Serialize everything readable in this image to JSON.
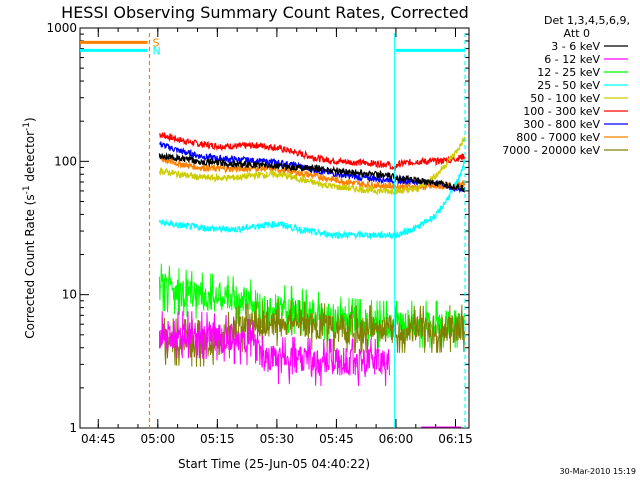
{
  "chart_data": {
    "type": "line",
    "title": "HESSI Observing Summary Count Rates, Corrected",
    "xlabel": "Start Time (25-Jun-05 04:40:22)",
    "ylabel_main": "Corrected Count Rate (s",
    "ylabel_sup1": "-1",
    "ylabel_mid": " detector",
    "ylabel_sup2": "-1",
    "ylabel_end": ")",
    "x_unit": "minutes since 04:40:22 UT",
    "xlim": [
      0,
      98
    ],
    "ylim": [
      1,
      1000
    ],
    "yscale": "log",
    "xticks": [
      {
        "t": 4.6,
        "label": "04:45"
      },
      {
        "t": 19.6,
        "label": "05:00"
      },
      {
        "t": 34.6,
        "label": "05:15"
      },
      {
        "t": 49.6,
        "label": "05:30"
      },
      {
        "t": 64.6,
        "label": "05:45"
      },
      {
        "t": 79.6,
        "label": "06:00"
      },
      {
        "t": 94.6,
        "label": "06:15"
      }
    ],
    "yticks": [
      {
        "v": 1,
        "label": "1"
      },
      {
        "v": 10,
        "label": "10"
      },
      {
        "v": 100,
        "label": "100"
      },
      {
        "v": 1000,
        "label": "1000"
      }
    ],
    "legend_header": [
      "Det 1,3,4,5,6,9,",
      "Att 0"
    ],
    "legend_placement": "right",
    "series": [
      {
        "name": "3 - 6 keV",
        "color": "#000000",
        "x": [
          20,
          30,
          40,
          50,
          60,
          65,
          70,
          75,
          77,
          85,
          90,
          93,
          97
        ],
        "y": [
          110,
          100,
          95,
          92,
          88,
          85,
          82,
          80,
          78,
          72,
          68,
          66,
          62
        ]
      },
      {
        "name": "6 - 12 keV",
        "color": "#ff00ff",
        "x": [
          20,
          25,
          30,
          35,
          40,
          43,
          46,
          50,
          55,
          60,
          65,
          70,
          75,
          78
        ],
        "y": [
          5.0,
          5.0,
          5.0,
          4.8,
          4.5,
          4.4,
          3.3,
          3.2,
          3.2,
          3.1,
          3.1,
          3.1,
          3.1,
          3.1
        ]
      },
      {
        "name": "12 - 25 keV",
        "color": "#00ff00",
        "x": [
          20,
          25,
          30,
          35,
          40,
          45,
          50,
          55,
          60,
          65,
          70,
          75,
          80,
          85,
          90,
          95,
          97
        ],
        "y": [
          11.5,
          10.5,
          9.8,
          9.5,
          9.0,
          8.5,
          8.0,
          7.5,
          7.0,
          6.5,
          6.2,
          6.0,
          6.0,
          6.0,
          6.0,
          6.0,
          6.0
        ]
      },
      {
        "name": "25 - 50 keV",
        "color": "#00ffff",
        "x": [
          20,
          25,
          30,
          35,
          40,
          45,
          50,
          55,
          60,
          65,
          70,
          75,
          80,
          85,
          90,
          93,
          95,
          97
        ],
        "y": [
          35,
          33,
          32,
          31,
          31,
          33,
          34,
          31,
          29,
          28,
          28,
          28,
          28,
          32,
          40,
          55,
          70,
          100
        ]
      },
      {
        "name": "50 - 100 keV",
        "color": "#cccc00",
        "x": [
          20,
          25,
          30,
          35,
          40,
          45,
          50,
          55,
          60,
          65,
          70,
          75,
          80,
          85,
          90,
          95,
          97
        ],
        "y": [
          85,
          80,
          76,
          75,
          76,
          79,
          80,
          74,
          68,
          64,
          62,
          60,
          60,
          62,
          80,
          120,
          150
        ]
      },
      {
        "name": "100 - 300 keV",
        "color": "#ff0000",
        "x": [
          20,
          25,
          30,
          35,
          40,
          45,
          50,
          55,
          60,
          65,
          70,
          75,
          78,
          79,
          80,
          85,
          90,
          95,
          97
        ],
        "y": [
          160,
          145,
          135,
          130,
          130,
          132,
          126,
          115,
          105,
          100,
          98,
          96,
          95,
          85,
          95,
          100,
          100,
          105,
          110
        ]
      },
      {
        "name": "300 - 800 keV",
        "color": "#0000ff",
        "x": [
          20,
          25,
          30,
          35,
          40,
          45,
          50,
          55,
          60,
          65,
          70,
          75,
          80,
          85,
          90,
          95,
          97
        ],
        "y": [
          135,
          120,
          110,
          105,
          103,
          100,
          98,
          92,
          85,
          80,
          76,
          74,
          72,
          70,
          68,
          62,
          62
        ]
      },
      {
        "name": "800 - 7000 keV",
        "color": "#ff8000",
        "x": [
          20,
          25,
          30,
          35,
          40,
          45,
          50,
          55,
          60,
          65,
          70,
          75,
          80,
          85,
          90,
          95,
          97
        ],
        "y": [
          105,
          96,
          90,
          88,
          88,
          89,
          87,
          82,
          77,
          72,
          68,
          66,
          65,
          64,
          65,
          66,
          68
        ]
      },
      {
        "name": "7000 - 20000 keV",
        "color": "#808000",
        "x": [
          20,
          25,
          30,
          35,
          40,
          45,
          50,
          55,
          60,
          65,
          70,
          75,
          80,
          85,
          90,
          95,
          97
        ],
        "y": [
          4.5,
          4.4,
          4.3,
          4.5,
          5.5,
          6.0,
          6.2,
          6.0,
          5.8,
          5.6,
          5.5,
          5.5,
          5.5,
          5.5,
          5.5,
          5.6,
          5.6
        ]
      }
    ],
    "attenuator_markers": [
      {
        "label": "S",
        "color": "#ff8000",
        "x_end": 17,
        "level": 780,
        "label_color": "#ff8000"
      },
      {
        "label": "N",
        "color": "#00ffff",
        "x_end": 17,
        "level": 680,
        "label_color": "#00ffff"
      }
    ],
    "night_segments": [
      {
        "color": "#00ffff",
        "x_start": 79.6,
        "x_end": 97,
        "level": 680
      }
    ],
    "vertical_markers": [
      {
        "t": 17.5,
        "color": "#ff8000",
        "style": "dashed"
      },
      {
        "t": 79.3,
        "color": "#00ffff",
        "style": "solid"
      },
      {
        "t": 97.0,
        "color": "#00ffff",
        "style": "dashed"
      }
    ],
    "timestamp": "30-Mar-2010 15:19"
  }
}
